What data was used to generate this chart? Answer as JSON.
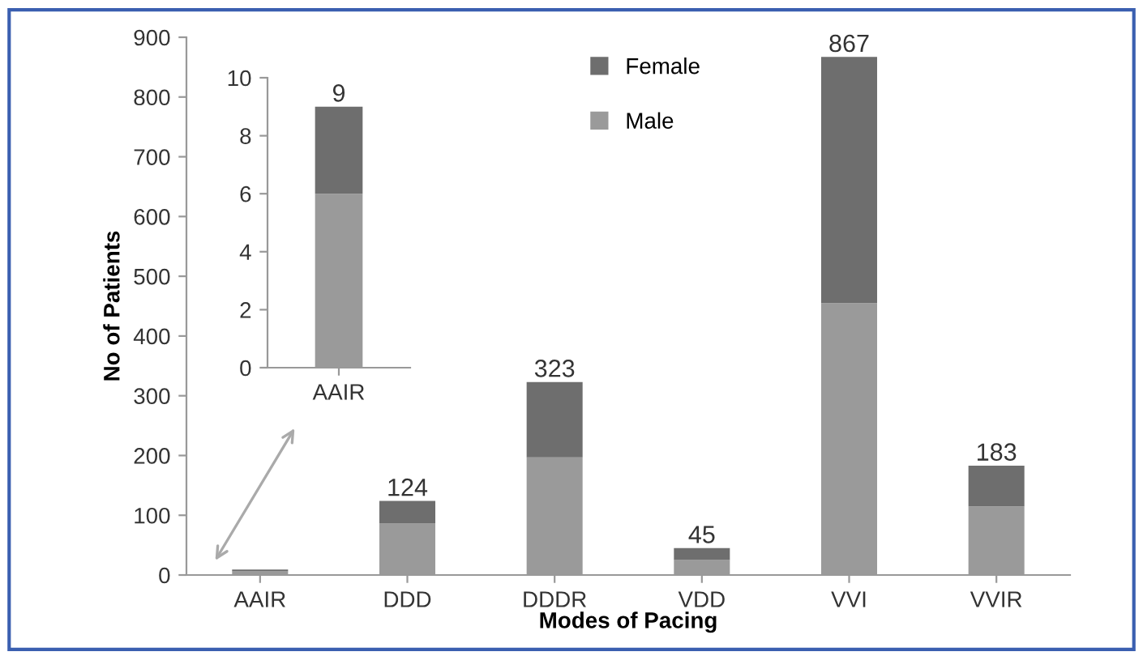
{
  "chart_data": [
    {
      "type": "bar",
      "stacked": true,
      "categories": [
        "AAIR",
        "DDD",
        "DDDR",
        "VDD",
        "VVI",
        "VVIR"
      ],
      "xlabel": "Modes of Pacing",
      "ylabel": "No of Patients",
      "ylim": [
        0,
        900
      ],
      "yticks": [
        0,
        100,
        200,
        300,
        400,
        500,
        600,
        700,
        800,
        900
      ],
      "legend": "top",
      "grid": false,
      "series": [
        {
          "name": "Male",
          "color": "#9a9a9a",
          "values": [
            6,
            86,
            197,
            25,
            455,
            115
          ]
        },
        {
          "name": "Female",
          "color": "#6e6e6e",
          "values": [
            3,
            38,
            126,
            20,
            412,
            68
          ]
        }
      ],
      "totals": [
        null,
        "124",
        "323",
        "45",
        "867",
        "183"
      ]
    },
    {
      "type": "bar",
      "stacked": true,
      "categories": [
        "AAIR"
      ],
      "ylim": [
        0,
        10
      ],
      "yticks": [
        0,
        2,
        4,
        6,
        8,
        10
      ],
      "grid": false,
      "series": [
        {
          "color": "#9a9a9a",
          "values": [
            6
          ]
        },
        {
          "color": "#6e6e6e",
          "values": [
            3
          ]
        }
      ],
      "totals": [
        "9"
      ]
    }
  ]
}
